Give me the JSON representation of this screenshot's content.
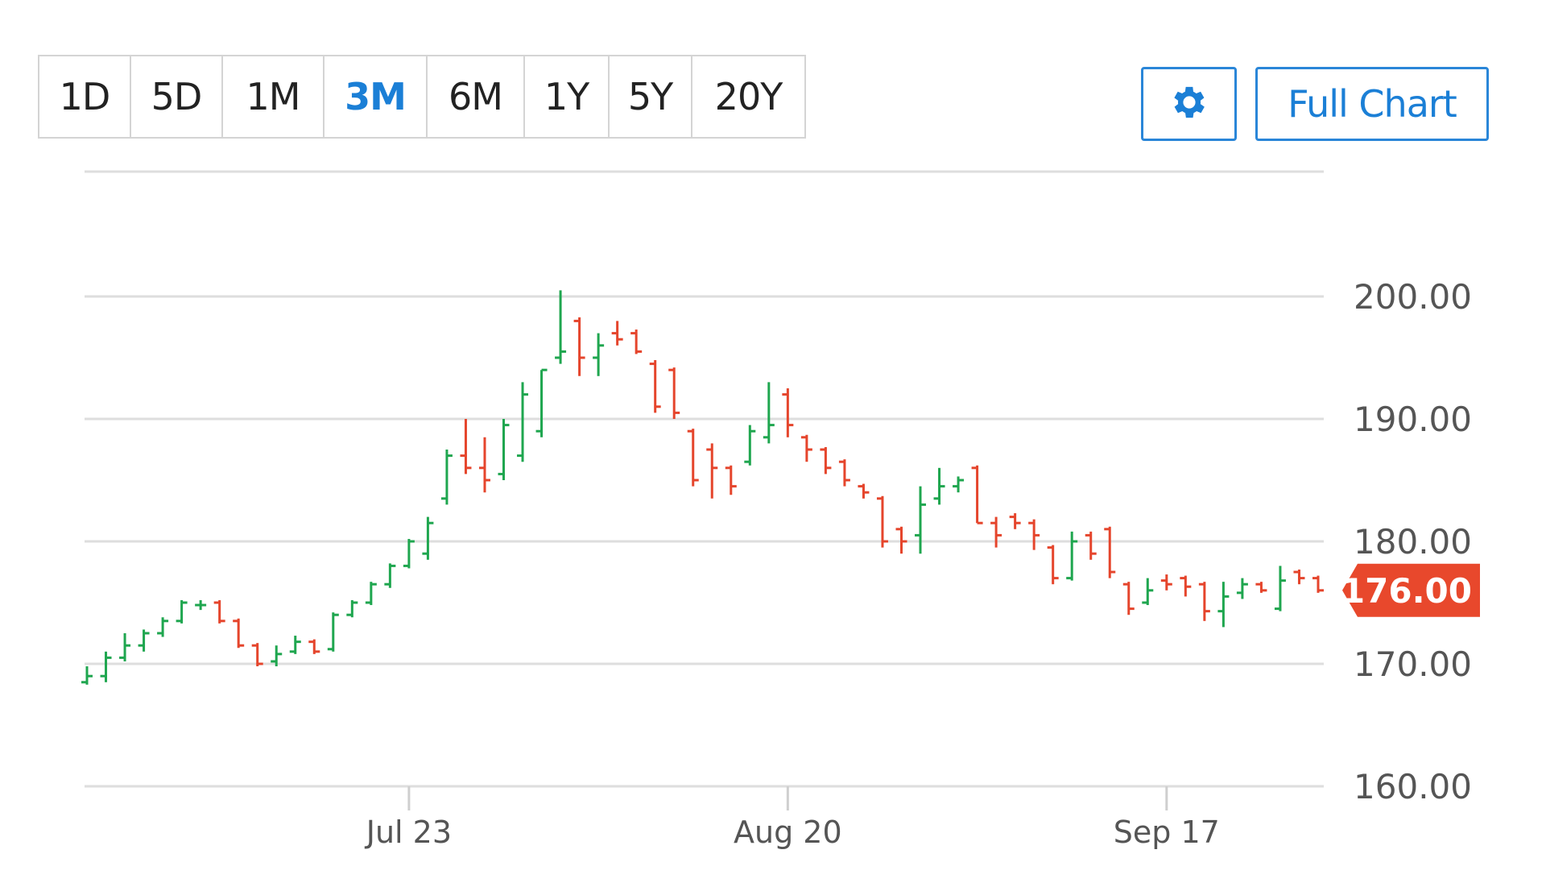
{
  "toolbar": {
    "ranges": [
      "1D",
      "5D",
      "1M",
      "3M",
      "6M",
      "1Y",
      "5Y",
      "20Y"
    ],
    "active_range": "3M",
    "settings_icon": "gear-icon",
    "full_chart_label": "Full Chart"
  },
  "colors": {
    "up": "#1fa64f",
    "down": "#e5452c",
    "accent": "#1b7fd6",
    "badge": "#e8482c",
    "grid": "#dedede"
  },
  "chart_data": {
    "type": "ohlc",
    "title": "",
    "ylim": [
      160,
      210
    ],
    "y_ticks": [
      160,
      170,
      180,
      190,
      200
    ],
    "y_tick_labels": [
      "160.00",
      "170.00",
      "180.00",
      "190.00",
      "200.00"
    ],
    "x_tick_labels": [
      {
        "label": "Jul 23",
        "index": 17
      },
      {
        "label": "Aug 20",
        "index": 37
      },
      {
        "label": "Sep 17",
        "index": 57
      }
    ],
    "last_price_label": "176.00",
    "last_price": 176.0,
    "grid": true,
    "bars": [
      [
        168.5,
        169.8,
        168.3,
        169.0
      ],
      [
        169.0,
        171.0,
        168.5,
        170.5
      ],
      [
        170.5,
        172.5,
        170.2,
        171.5
      ],
      [
        171.5,
        172.8,
        171.0,
        172.5
      ],
      [
        172.5,
        173.8,
        172.2,
        173.5
      ],
      [
        173.5,
        175.2,
        173.3,
        175.0
      ],
      [
        174.8,
        175.2,
        174.4,
        174.8
      ],
      [
        175.0,
        175.2,
        173.3,
        173.5
      ],
      [
        173.5,
        173.7,
        171.3,
        171.5
      ],
      [
        171.5,
        171.7,
        169.8,
        170.0
      ],
      [
        170.2,
        171.5,
        169.8,
        170.8
      ],
      [
        171.0,
        172.3,
        170.8,
        171.8
      ],
      [
        171.8,
        172.0,
        170.8,
        171.0
      ],
      [
        171.2,
        174.2,
        171.0,
        174.0
      ],
      [
        174.0,
        175.2,
        173.8,
        175.0
      ],
      [
        175.0,
        176.7,
        174.8,
        176.5
      ],
      [
        176.5,
        178.2,
        176.2,
        178.0
      ],
      [
        178.0,
        180.2,
        177.8,
        180.0
      ],
      [
        179.0,
        182.0,
        178.5,
        181.5
      ],
      [
        183.5,
        187.5,
        183.0,
        187.0
      ],
      [
        187.0,
        190.0,
        185.5,
        186.0
      ],
      [
        186.0,
        188.5,
        184.0,
        185.0
      ],
      [
        185.5,
        190.0,
        185.0,
        189.5
      ],
      [
        187.0,
        193.0,
        186.5,
        192.0
      ],
      [
        189.0,
        194.0,
        188.5,
        194.0
      ],
      [
        195.0,
        200.5,
        194.5,
        195.5
      ],
      [
        198.0,
        198.3,
        193.5,
        195.0
      ],
      [
        195.0,
        197.0,
        193.5,
        196.0
      ],
      [
        197.0,
        198.0,
        196.0,
        196.5
      ],
      [
        197.0,
        197.3,
        195.3,
        195.5
      ],
      [
        194.5,
        194.8,
        190.5,
        191.0
      ],
      [
        194.0,
        194.2,
        190.0,
        190.5
      ],
      [
        189.0,
        189.2,
        184.5,
        185.0
      ],
      [
        187.5,
        188.0,
        183.5,
        186.0
      ],
      [
        186.0,
        186.2,
        183.8,
        184.5
      ],
      [
        186.5,
        189.5,
        186.2,
        189.0
      ],
      [
        188.5,
        193.0,
        188.0,
        189.5
      ],
      [
        192.0,
        192.5,
        188.5,
        189.5
      ],
      [
        188.5,
        188.7,
        186.5,
        187.5
      ],
      [
        187.5,
        187.7,
        185.5,
        186.0
      ],
      [
        186.5,
        186.7,
        184.5,
        185.0
      ],
      [
        184.5,
        184.7,
        183.5,
        184.0
      ],
      [
        183.5,
        183.7,
        179.5,
        180.0
      ],
      [
        181.0,
        181.2,
        179.0,
        180.0
      ],
      [
        180.5,
        184.5,
        179.0,
        183.0
      ],
      [
        183.5,
        186.0,
        183.0,
        184.5
      ],
      [
        184.5,
        185.3,
        184.0,
        185.0
      ],
      [
        186.0,
        186.2,
        181.5,
        181.5
      ],
      [
        181.5,
        182.0,
        179.5,
        180.5
      ],
      [
        182.0,
        182.3,
        181.0,
        181.5
      ],
      [
        181.5,
        181.8,
        179.3,
        180.5
      ],
      [
        179.5,
        179.7,
        176.5,
        177.0
      ],
      [
        177.0,
        180.8,
        176.8,
        180.0
      ],
      [
        180.5,
        180.8,
        178.5,
        179.0
      ],
      [
        181.0,
        181.2,
        177.0,
        177.5
      ],
      [
        176.5,
        176.7,
        174.0,
        174.5
      ],
      [
        175.0,
        177.0,
        174.8,
        176.0
      ],
      [
        176.8,
        177.3,
        176.0,
        176.5
      ],
      [
        177.0,
        177.2,
        175.5,
        176.3
      ],
      [
        176.5,
        176.7,
        173.5,
        174.3
      ],
      [
        174.3,
        176.7,
        173.0,
        175.5
      ],
      [
        175.8,
        177.0,
        175.3,
        176.5
      ],
      [
        176.5,
        176.7,
        175.8,
        176.0
      ],
      [
        174.5,
        178.0,
        174.3,
        176.8
      ],
      [
        177.5,
        177.7,
        176.5,
        177.0
      ],
      [
        177.0,
        177.2,
        175.8,
        176.0
      ]
    ]
  }
}
